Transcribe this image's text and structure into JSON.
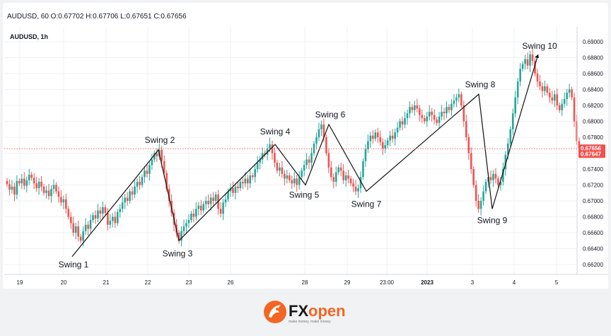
{
  "header": {
    "ohlc_text": "AUDUSD, 60  O:0.67702  H:0.67706  L:0.67651  C:0.67656",
    "symbol_label": "AUDUSD, 1h"
  },
  "brand": {
    "name_fx": "FX",
    "name_open": "open",
    "tagline": "make money, make money",
    "accent_color": "#f26522",
    "dark_color": "#1a1a1a"
  },
  "colors": {
    "up": "#26a69a",
    "down": "#ef5350",
    "price_line": "#ef5350",
    "swing_line": "#111111",
    "grid": "#eef0f3"
  },
  "chart_data": {
    "type": "candlestick",
    "title": "AUDUSD, 1h",
    "ylim": [
      0.661,
      0.691
    ],
    "y_ticks": [
      "0.69000",
      "0.68800",
      "0.68600",
      "0.68400",
      "0.68200",
      "0.68000",
      "0.67800",
      "0.67600",
      "0.67400",
      "0.67200",
      "0.67000",
      "0.66800",
      "0.66600",
      "0.66400",
      "0.66200"
    ],
    "x_tick_labels": [
      "19",
      "20",
      "21",
      "22",
      "23",
      "26",
      "28",
      "29",
      "23:00",
      "2023",
      "3",
      "4",
      "5"
    ],
    "current_price": "0.67656",
    "current_price_value": 0.67656,
    "second_price": "0.67647",
    "second_price_value": 0.67647,
    "swings": [
      {
        "label": "Swing 1",
        "price": 0.663
      },
      {
        "label": "Swing 2",
        "price": 0.6764
      },
      {
        "label": "Swing 3",
        "price": 0.665
      },
      {
        "label": "Swing 4",
        "price": 0.6771
      },
      {
        "label": "Swing 5",
        "price": 0.672
      },
      {
        "label": "Swing 6",
        "price": 0.6796
      },
      {
        "label": "Swing 7",
        "price": 0.6712
      },
      {
        "label": "Swing 8",
        "price": 0.6834
      },
      {
        "label": "Swing 9",
        "price": 0.669
      },
      {
        "label": "Swing 10",
        "price": 0.6884
      }
    ],
    "candle_closes": [
      0.6721,
      0.6714,
      0.6718,
      0.6708,
      0.6725,
      0.6722,
      0.6728,
      0.6719,
      0.6726,
      0.6733,
      0.6729,
      0.6722,
      0.6716,
      0.6724,
      0.6718,
      0.671,
      0.6713,
      0.6706,
      0.6715,
      0.672,
      0.6712,
      0.6705,
      0.6698,
      0.6702,
      0.669,
      0.668,
      0.6672,
      0.666,
      0.6668,
      0.6655,
      0.665,
      0.6662,
      0.667,
      0.6665,
      0.6676,
      0.6682,
      0.6678,
      0.6688,
      0.6684,
      0.6692,
      0.6685,
      0.667,
      0.6675,
      0.668,
      0.6672,
      0.6686,
      0.669,
      0.6698,
      0.6704,
      0.67,
      0.6712,
      0.6708,
      0.6718,
      0.6724,
      0.672,
      0.673,
      0.6738,
      0.6734,
      0.6745,
      0.6752,
      0.676,
      0.6756,
      0.6764,
      0.675,
      0.6735,
      0.6715,
      0.67,
      0.6685,
      0.667,
      0.666,
      0.665,
      0.6662,
      0.6668,
      0.6672,
      0.6676,
      0.6684,
      0.668,
      0.669,
      0.6694,
      0.6688,
      0.6696,
      0.67,
      0.6696,
      0.6704,
      0.67,
      0.6708,
      0.669,
      0.6684,
      0.6698,
      0.6702,
      0.6712,
      0.6716,
      0.671,
      0.6718,
      0.6716,
      0.6724,
      0.6722,
      0.6728,
      0.6722,
      0.6732,
      0.673,
      0.674,
      0.6748,
      0.6752,
      0.676,
      0.6758,
      0.6766,
      0.6771,
      0.676,
      0.6748,
      0.6738,
      0.6742,
      0.6734,
      0.6728,
      0.6732,
      0.6726,
      0.6722,
      0.6728,
      0.672,
      0.673,
      0.6738,
      0.6745,
      0.6752,
      0.6748,
      0.676,
      0.6772,
      0.678,
      0.679,
      0.6796,
      0.678,
      0.676,
      0.6742,
      0.673,
      0.6724,
      0.6736,
      0.6742,
      0.6738,
      0.6726,
      0.6732,
      0.6728,
      0.6722,
      0.6718,
      0.6712,
      0.6716,
      0.673,
      0.675,
      0.6765,
      0.6775,
      0.6782,
      0.6778,
      0.6786,
      0.678,
      0.6774,
      0.6766,
      0.677,
      0.6776,
      0.6782,
      0.6778,
      0.6786,
      0.6792,
      0.68,
      0.6796,
      0.6804,
      0.681,
      0.6818,
      0.6814,
      0.682,
      0.6816,
      0.6808,
      0.6804,
      0.68,
      0.6806,
      0.6812,
      0.6808,
      0.6802,
      0.6798,
      0.6806,
      0.6812,
      0.681,
      0.6818,
      0.6814,
      0.6822,
      0.6826,
      0.683,
      0.6834,
      0.682,
      0.68,
      0.678,
      0.676,
      0.674,
      0.672,
      0.67,
      0.669,
      0.67,
      0.6712,
      0.6724,
      0.673,
      0.6726,
      0.6734,
      0.6728,
      0.672,
      0.6724,
      0.674,
      0.6758,
      0.6772,
      0.679,
      0.681,
      0.683,
      0.685,
      0.6866,
      0.6872,
      0.6878,
      0.687,
      0.6884,
      0.6876,
      0.686,
      0.685,
      0.6844,
      0.6838,
      0.6844,
      0.6836,
      0.683,
      0.6826,
      0.6834,
      0.682,
      0.6814,
      0.6822,
      0.6828,
      0.6836,
      0.684,
      0.683,
      0.68,
      0.6775,
      0.67656
    ]
  }
}
